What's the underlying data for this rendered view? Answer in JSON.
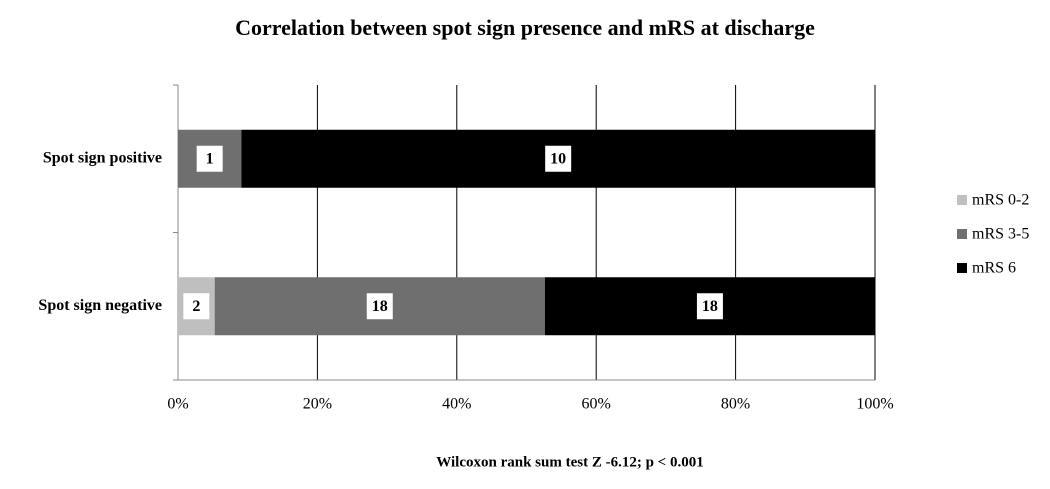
{
  "chart_data": {
    "type": "bar",
    "orientation": "horizontal",
    "stacking": "percent",
    "title": "Correlation between spot sign presence and mRS at discharge",
    "footnote": "Wilcoxon rank sum test  Z -6.12; p < 0.001",
    "categories": [
      "Spot sign positive",
      "Spot sign negative"
    ],
    "series": [
      {
        "name": "mRS 0-2",
        "color": "#bfbfbf",
        "values": [
          0,
          2
        ]
      },
      {
        "name": "mRS 3-5",
        "color": "#6f6f6f",
        "values": [
          1,
          18
        ]
      },
      {
        "name": "mRS 6",
        "color": "#000000",
        "values": [
          10,
          18
        ]
      }
    ],
    "xlim": [
      0,
      100
    ],
    "xticks": [
      {
        "value": 0,
        "label": "0%"
      },
      {
        "value": 20,
        "label": "20%"
      },
      {
        "value": 40,
        "label": "40%"
      },
      {
        "value": 60,
        "label": "60%"
      },
      {
        "value": 80,
        "label": "80%"
      },
      {
        "value": 100,
        "label": "100%"
      }
    ],
    "grid": true,
    "legend": "right"
  }
}
